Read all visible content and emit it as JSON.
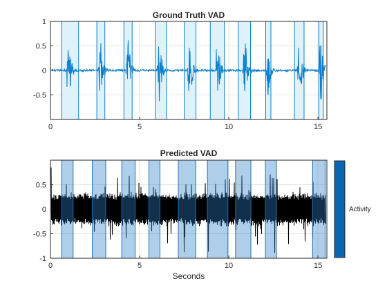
{
  "chart_data": [
    {
      "type": "line",
      "title": "Ground Truth VAD",
      "xlabel": "",
      "ylabel": "",
      "xlim": [
        0,
        15.5
      ],
      "ylim": [
        -1,
        1
      ],
      "xticks": [
        0,
        5,
        10,
        15
      ],
      "yticks": [
        -0.5,
        0,
        0.5,
        1
      ],
      "ytick_labels": [
        "-0.5",
        "0",
        "0.5",
        "1"
      ],
      "grid": true,
      "signal_color": "#0b7fcc",
      "region_fill": "#dff1fb",
      "region_edge": "#0b7fcc",
      "speech_regions": [
        [
          0.63,
          1.58
        ],
        [
          2.6,
          3.05
        ],
        [
          4.12,
          4.58
        ],
        [
          5.88,
          6.5
        ],
        [
          7.5,
          8.16
        ],
        [
          8.96,
          9.75
        ],
        [
          10.53,
          11.22
        ],
        [
          12.07,
          12.36
        ],
        [
          13.68,
          14.22
        ],
        [
          15.05,
          15.3
        ]
      ],
      "burst_centers": [
        1.0,
        2.8,
        4.35,
        6.1,
        7.8,
        9.35,
        10.9,
        12.2,
        13.95,
        15.15
      ],
      "burst_peaks": [
        0.9,
        0.73,
        0.8,
        0.8,
        0.88,
        0.85,
        0.84,
        0.54,
        0.85,
        0.87
      ]
    },
    {
      "type": "line",
      "title": "Predicted VAD",
      "xlabel": "Seconds",
      "ylabel": "",
      "xlim": [
        0,
        15.5
      ],
      "ylim": [
        -1,
        1
      ],
      "xticks": [
        0,
        5,
        10,
        15
      ],
      "yticks": [
        -1,
        -0.5,
        0,
        0.5
      ],
      "ytick_labels": [
        "-1",
        "-0.5",
        "0",
        "0.5"
      ],
      "grid": true,
      "signal_color": "#000000",
      "region_fill": "#2a7fc8",
      "region_alpha": 0.38,
      "region_edge": "#1f6fb5",
      "speech_regions": [
        [
          0.63,
          1.27
        ],
        [
          2.35,
          3.1
        ],
        [
          4.0,
          4.75
        ],
        [
          5.52,
          6.14
        ],
        [
          7.17,
          8.15
        ],
        [
          8.8,
          9.95
        ],
        [
          10.38,
          11.24
        ],
        [
          12.05,
          12.67
        ],
        [
          14.7,
          15.4
        ]
      ],
      "colorbar": {
        "label": "Activity",
        "color": "#0a66b0"
      }
    }
  ]
}
